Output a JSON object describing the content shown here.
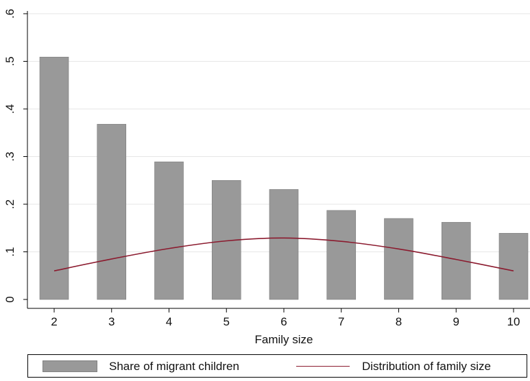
{
  "chart_data": {
    "type": "bar",
    "xlabel": "Family size",
    "ylabel": "",
    "categories": [
      "2",
      "3",
      "4",
      "5",
      "6",
      "7",
      "8",
      "9",
      "10"
    ],
    "ylim": [
      0,
      0.6
    ],
    "yticks": [
      0,
      0.1,
      0.2,
      0.3,
      0.4,
      0.5,
      0.6
    ],
    "ytick_labels": [
      "0",
      ".1",
      ".2",
      ".3",
      ".4",
      ".5",
      ".6"
    ],
    "grid": true,
    "legend_position": "bottom",
    "series": [
      {
        "name": "Share of migrant children",
        "type": "bar",
        "color": "#999999",
        "values": [
          0.509,
          0.368,
          0.289,
          0.25,
          0.231,
          0.187,
          0.17,
          0.162,
          0.139
        ]
      },
      {
        "name": "Distribution of family size",
        "type": "line",
        "color": "#8B1A2E",
        "values": [
          0.06,
          0.085,
          0.107,
          0.123,
          0.129,
          0.122,
          0.106,
          0.084,
          0.06
        ]
      }
    ]
  }
}
